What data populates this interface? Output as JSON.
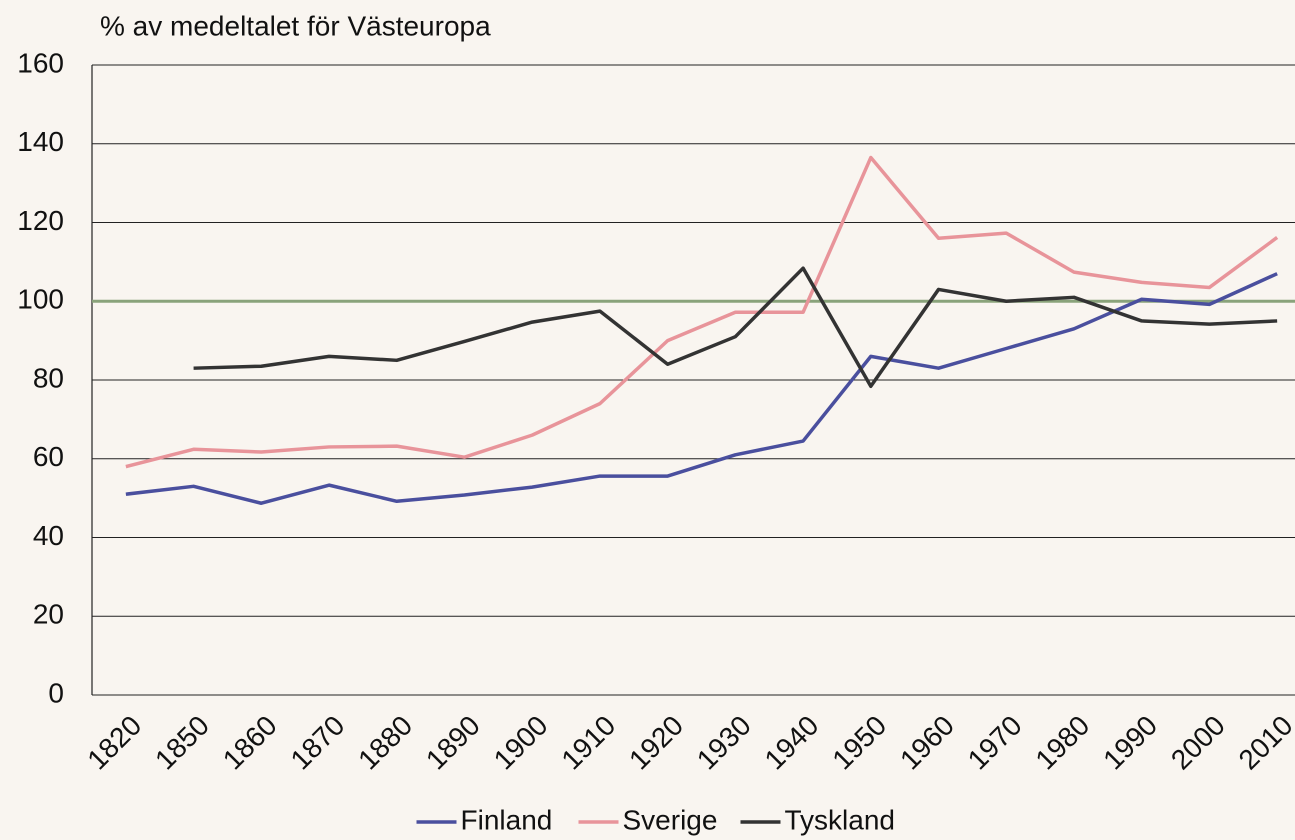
{
  "chart_data": {
    "type": "line",
    "title": "% av medeltalet för Västeuropa",
    "categories": [
      "1820",
      "1850",
      "1860",
      "1870",
      "1880",
      "1890",
      "1900",
      "1910",
      "1920",
      "1930",
      "1940",
      "1950",
      "1960",
      "1970",
      "1980",
      "1990",
      "2000",
      "2010"
    ],
    "series": [
      {
        "name": "Finland",
        "color": "#4a4f9e",
        "values": [
          51,
          53,
          48.7,
          53.3,
          49.2,
          50.8,
          52.8,
          55.6,
          55.6,
          61,
          64.5,
          86,
          83,
          88,
          93,
          100.5,
          99.2,
          107
        ]
      },
      {
        "name": "Sverige",
        "color": "#e8949a",
        "values": [
          58,
          62.4,
          61.7,
          63,
          63.2,
          60.4,
          66,
          74,
          90,
          97.2,
          97.2,
          136.5,
          116,
          117.3,
          107.4,
          104.8,
          103.5,
          116.2
        ]
      },
      {
        "name": "Tyskland",
        "color": "#333333",
        "values": [
          null,
          83,
          83.5,
          86,
          85,
          89.8,
          94.7,
          97.5,
          84,
          91,
          108.4,
          78.4,
          103,
          100,
          101,
          95,
          94.2,
          95
        ]
      }
    ],
    "reference_line": {
      "value": 100,
      "color": "#8aa37b"
    },
    "ylim": [
      0,
      160
    ],
    "yticks": [
      0,
      20,
      40,
      60,
      80,
      100,
      120,
      140,
      160
    ],
    "grid": true,
    "legend": "bottom"
  }
}
